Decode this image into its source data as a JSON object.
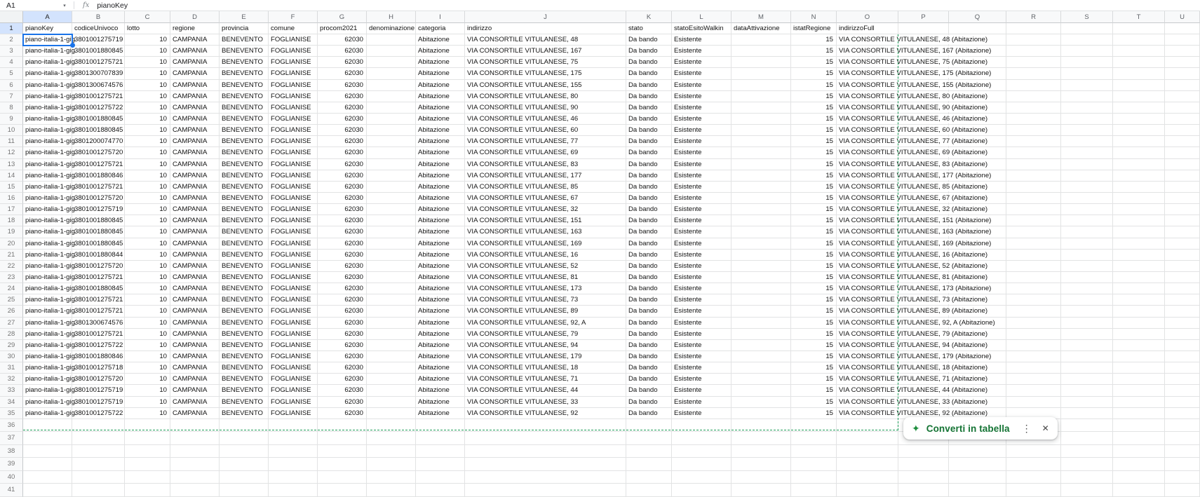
{
  "app": {
    "name_box": "A1",
    "fx_label": "fx",
    "formula": "pianoKey"
  },
  "suggestion": {
    "label": "Converti in tabella",
    "sparkle_icon": "✦",
    "more_icon": "⋮",
    "close_icon": "✕"
  },
  "colors": {
    "selection_blue": "#1a73e8",
    "header_highlight": "#d3e3fd",
    "range_dash_green": "#1e9e5a",
    "suggestion_green": "#137333"
  },
  "grid": {
    "column_letters": [
      "A",
      "B",
      "C",
      "D",
      "E",
      "F",
      "G",
      "H",
      "I",
      "J",
      "K",
      "L",
      "M",
      "N",
      "O",
      "P",
      "Q",
      "R",
      "S",
      "T",
      "U"
    ],
    "selected_cell": "A1",
    "header_row": [
      "pianoKey",
      "codiceUnivoco",
      "lotto",
      "regione",
      "provincia",
      "comune",
      "procom2021",
      "denominazione",
      "categoria",
      "indirizzo",
      "stato",
      "statoEsitoWalkin",
      "dataAttivazione",
      "istatRegione",
      "indirizzoFull"
    ],
    "constants": {
      "pianoKey": "piano-italia-1-gig",
      "lotto": "10",
      "regione": "CAMPANIA",
      "provincia": "BENEVENTO",
      "comune": "FOGLIANISE",
      "procom2021": "62030",
      "denominazione": "",
      "categoria": "Abitazione",
      "stato": "Da bando",
      "statoEsitoWalkin": "Esistente",
      "dataAttivazione": "",
      "istatRegione": "15"
    },
    "rows": [
      {
        "row": 2,
        "codiceUnivoco": "3801001275719",
        "indirizzo": "VIA CONSORTILE VITULANESE, 48",
        "indirizzoFull": "VIA CONSORTILE VITULANESE, 48 (Abitazione)"
      },
      {
        "row": 3,
        "codiceUnivoco": "3801001880845",
        "indirizzo": "VIA CONSORTILE VITULANESE, 167",
        "indirizzoFull": "VIA CONSORTILE VITULANESE, 167 (Abitazione)"
      },
      {
        "row": 4,
        "codiceUnivoco": "3801001275721",
        "indirizzo": "VIA CONSORTILE VITULANESE, 75",
        "indirizzoFull": "VIA CONSORTILE VITULANESE, 75 (Abitazione)"
      },
      {
        "row": 5,
        "codiceUnivoco": "3801300707839",
        "indirizzo": "VIA CONSORTILE VITULANESE, 175",
        "indirizzoFull": "VIA CONSORTILE VITULANESE, 175 (Abitazione)"
      },
      {
        "row": 6,
        "codiceUnivoco": "3801300674576",
        "indirizzo": "VIA CONSORTILE VITULANESE, 155",
        "indirizzoFull": "VIA CONSORTILE VITULANESE, 155 (Abitazione)"
      },
      {
        "row": 7,
        "codiceUnivoco": "3801001275721",
        "indirizzo": "VIA CONSORTILE VITULANESE, 80",
        "indirizzoFull": "VIA CONSORTILE VITULANESE, 80 (Abitazione)"
      },
      {
        "row": 8,
        "codiceUnivoco": "3801001275722",
        "indirizzo": "VIA CONSORTILE VITULANESE, 90",
        "indirizzoFull": "VIA CONSORTILE VITULANESE, 90 (Abitazione)"
      },
      {
        "row": 9,
        "codiceUnivoco": "3801001880845",
        "indirizzo": "VIA CONSORTILE VITULANESE, 46",
        "indirizzoFull": "VIA CONSORTILE VITULANESE, 46 (Abitazione)"
      },
      {
        "row": 10,
        "codiceUnivoco": "3801001880845",
        "indirizzo": "VIA CONSORTILE VITULANESE, 60",
        "indirizzoFull": "VIA CONSORTILE VITULANESE, 60 (Abitazione)"
      },
      {
        "row": 11,
        "codiceUnivoco": "3801200074770",
        "indirizzo": "VIA CONSORTILE VITULANESE, 77",
        "indirizzoFull": "VIA CONSORTILE VITULANESE, 77 (Abitazione)"
      },
      {
        "row": 12,
        "codiceUnivoco": "3801001275720",
        "indirizzo": "VIA CONSORTILE VITULANESE, 69",
        "indirizzoFull": "VIA CONSORTILE VITULANESE, 69 (Abitazione)"
      },
      {
        "row": 13,
        "codiceUnivoco": "3801001275721",
        "indirizzo": "VIA CONSORTILE VITULANESE, 83",
        "indirizzoFull": "VIA CONSORTILE VITULANESE, 83 (Abitazione)"
      },
      {
        "row": 14,
        "codiceUnivoco": "3801001880846",
        "indirizzo": "VIA CONSORTILE VITULANESE, 177",
        "indirizzoFull": "VIA CONSORTILE VITULANESE, 177 (Abitazione)"
      },
      {
        "row": 15,
        "codiceUnivoco": "3801001275721",
        "indirizzo": "VIA CONSORTILE VITULANESE, 85",
        "indirizzoFull": "VIA CONSORTILE VITULANESE, 85 (Abitazione)"
      },
      {
        "row": 16,
        "codiceUnivoco": "3801001275720",
        "indirizzo": "VIA CONSORTILE VITULANESE, 67",
        "indirizzoFull": "VIA CONSORTILE VITULANESE, 67 (Abitazione)"
      },
      {
        "row": 17,
        "codiceUnivoco": "3801001275719",
        "indirizzo": "VIA CONSORTILE VITULANESE, 32",
        "indirizzoFull": "VIA CONSORTILE VITULANESE, 32 (Abitazione)"
      },
      {
        "row": 18,
        "codiceUnivoco": "3801001880845",
        "indirizzo": "VIA CONSORTILE VITULANESE, 151",
        "indirizzoFull": "VIA CONSORTILE VITULANESE, 151 (Abitazione)"
      },
      {
        "row": 19,
        "codiceUnivoco": "3801001880845",
        "indirizzo": "VIA CONSORTILE VITULANESE, 163",
        "indirizzoFull": "VIA CONSORTILE VITULANESE, 163 (Abitazione)"
      },
      {
        "row": 20,
        "codiceUnivoco": "3801001880845",
        "indirizzo": "VIA CONSORTILE VITULANESE, 169",
        "indirizzoFull": "VIA CONSORTILE VITULANESE, 169 (Abitazione)"
      },
      {
        "row": 21,
        "codiceUnivoco": "3801001880844",
        "indirizzo": "VIA CONSORTILE VITULANESE, 16",
        "indirizzoFull": "VIA CONSORTILE VITULANESE, 16 (Abitazione)"
      },
      {
        "row": 22,
        "codiceUnivoco": "3801001275720",
        "indirizzo": "VIA CONSORTILE VITULANESE, 52",
        "indirizzoFull": "VIA CONSORTILE VITULANESE, 52 (Abitazione)"
      },
      {
        "row": 23,
        "codiceUnivoco": "3801001275721",
        "indirizzo": "VIA CONSORTILE VITULANESE, 81",
        "indirizzoFull": "VIA CONSORTILE VITULANESE, 81 (Abitazione)"
      },
      {
        "row": 24,
        "codiceUnivoco": "3801001880845",
        "indirizzo": "VIA CONSORTILE VITULANESE, 173",
        "indirizzoFull": "VIA CONSORTILE VITULANESE, 173 (Abitazione)"
      },
      {
        "row": 25,
        "codiceUnivoco": "3801001275721",
        "indirizzo": "VIA CONSORTILE VITULANESE, 73",
        "indirizzoFull": "VIA CONSORTILE VITULANESE, 73 (Abitazione)"
      },
      {
        "row": 26,
        "codiceUnivoco": "3801001275721",
        "indirizzo": "VIA CONSORTILE VITULANESE, 89",
        "indirizzoFull": "VIA CONSORTILE VITULANESE, 89 (Abitazione)"
      },
      {
        "row": 27,
        "codiceUnivoco": "3801300674576",
        "indirizzo": "VIA CONSORTILE VITULANESE, 92, A",
        "indirizzoFull": "VIA CONSORTILE VITULANESE, 92, A (Abitazione)"
      },
      {
        "row": 28,
        "codiceUnivoco": "3801001275721",
        "indirizzo": "VIA CONSORTILE VITULANESE, 79",
        "indirizzoFull": "VIA CONSORTILE VITULANESE, 79 (Abitazione)"
      },
      {
        "row": 29,
        "codiceUnivoco": "3801001275722",
        "indirizzo": "VIA CONSORTILE VITULANESE, 94",
        "indirizzoFull": "VIA CONSORTILE VITULANESE, 94 (Abitazione)"
      },
      {
        "row": 30,
        "codiceUnivoco": "3801001880846",
        "indirizzo": "VIA CONSORTILE VITULANESE, 179",
        "indirizzoFull": "VIA CONSORTILE VITULANESE, 179 (Abitazione)"
      },
      {
        "row": 31,
        "codiceUnivoco": "3801001275718",
        "indirizzo": "VIA CONSORTILE VITULANESE, 18",
        "indirizzoFull": "VIA CONSORTILE VITULANESE, 18 (Abitazione)"
      },
      {
        "row": 32,
        "codiceUnivoco": "3801001275720",
        "indirizzo": "VIA CONSORTILE VITULANESE, 71",
        "indirizzoFull": "VIA CONSORTILE VITULANESE, 71 (Abitazione)"
      },
      {
        "row": 33,
        "codiceUnivoco": "3801001275719",
        "indirizzo": "VIA CONSORTILE VITULANESE, 44",
        "indirizzoFull": "VIA CONSORTILE VITULANESE, 44 (Abitazione)"
      },
      {
        "row": 34,
        "codiceUnivoco": "3801001275719",
        "indirizzo": "VIA CONSORTILE VITULANESE, 33",
        "indirizzoFull": "VIA CONSORTILE VITULANESE, 33 (Abitazione)"
      },
      {
        "row": 35,
        "codiceUnivoco": "3801001275722",
        "indirizzo": "VIA CONSORTILE VITULANESE, 92",
        "indirizzoFull": "VIA CONSORTILE VITULANESE, 92 (Abitazione)"
      }
    ],
    "empty_row_numbers": [
      36,
      37,
      38,
      39,
      40,
      41
    ]
  }
}
